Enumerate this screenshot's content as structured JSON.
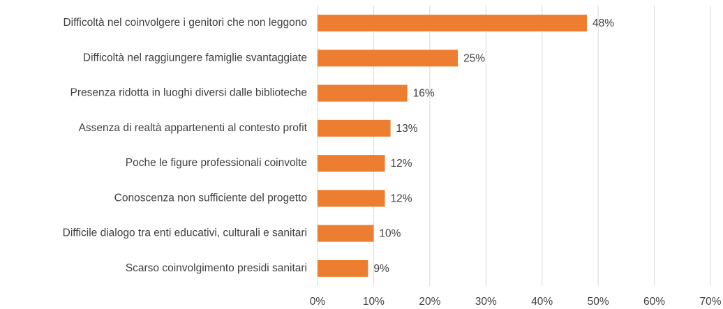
{
  "chart_data": {
    "type": "bar",
    "orientation": "horizontal",
    "categories": [
      "Difficoltà nel coinvolgere i genitori che non leggono",
      "Difficoltà nel raggiungere famiglie svantaggiate",
      "Presenza ridotta in luoghi diversi dalle biblioteche",
      "Assenza di realtà appartenenti al contesto profit",
      "Poche le figure professionali coinvolte",
      "Conoscenza non sufficiente del progetto",
      "Difficile dialogo tra enti educativi, culturali e sanitari",
      "Scarso coinvolgimento presidi sanitari"
    ],
    "values": [
      48,
      25,
      16,
      13,
      12,
      12,
      10,
      9
    ],
    "value_labels": [
      "48%",
      "25%",
      "16%",
      "13%",
      "12%",
      "12%",
      "10%",
      "9%"
    ],
    "color": "#ed7d31",
    "xlim": [
      0,
      70
    ],
    "xticks": [
      {
        "value": 0,
        "label": "0%"
      },
      {
        "value": 10,
        "label": "10%"
      },
      {
        "value": 20,
        "label": "20%"
      },
      {
        "value": 30,
        "label": "30%"
      },
      {
        "value": 40,
        "label": "40%"
      },
      {
        "value": 50,
        "label": "50%"
      },
      {
        "value": 60,
        "label": "60%"
      },
      {
        "value": 70,
        "label": "70%"
      }
    ],
    "grid": true
  }
}
